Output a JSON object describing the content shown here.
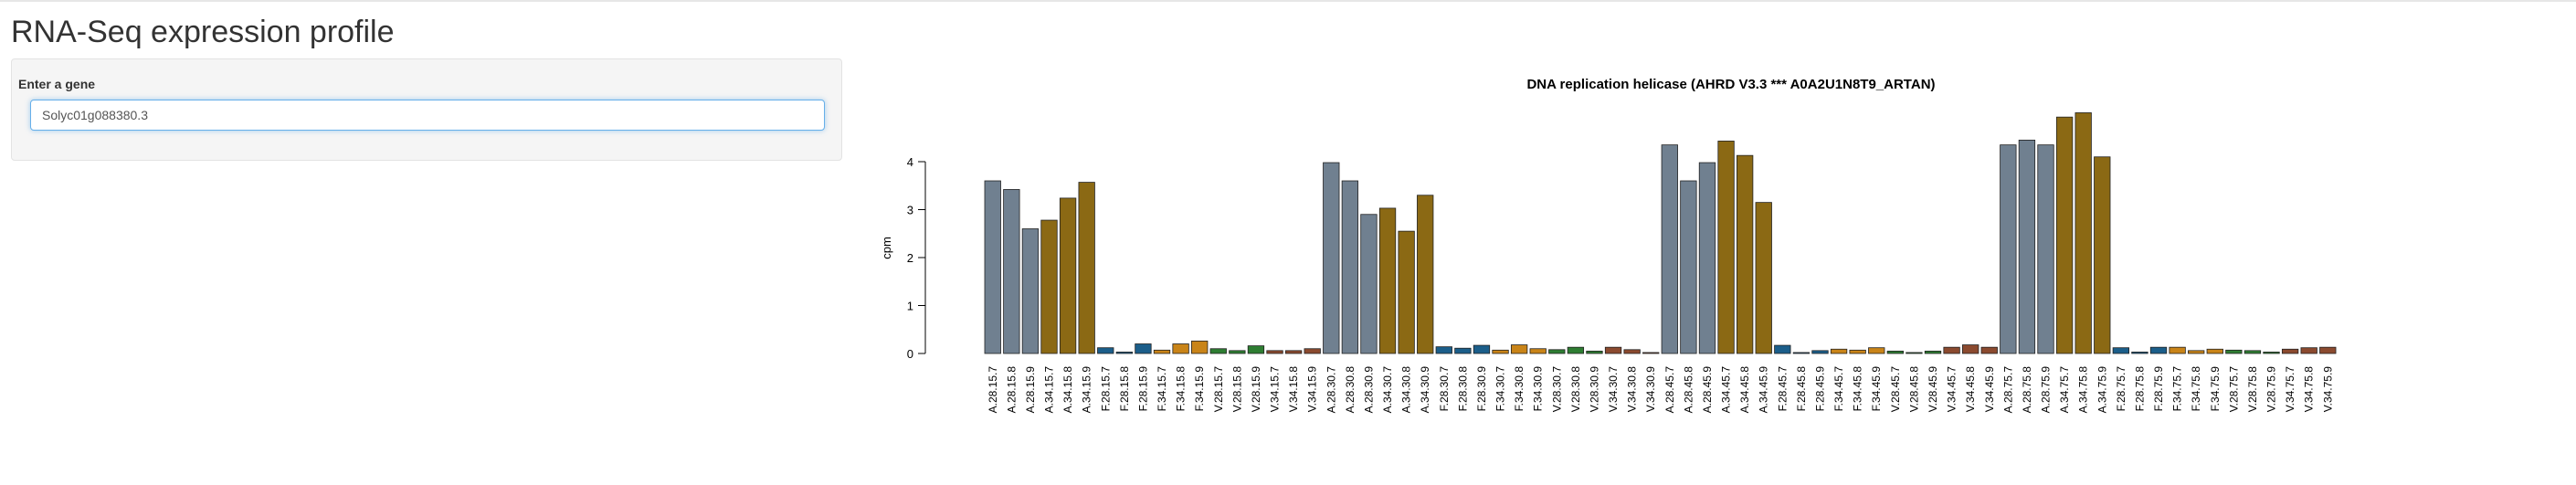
{
  "page": {
    "title": "RNA-Seq expression profile"
  },
  "sidebar": {
    "input_label": "Enter a gene",
    "gene_value": "Solyc01g088380.3"
  },
  "colors": {
    "grey": "#708090",
    "gold": "#8b6914",
    "blue": "#1b5e8a",
    "orange": "#c98418",
    "green": "#2e7d32",
    "brown": "#8b4a2f",
    "bar_stroke": "#222222"
  },
  "chart_data": {
    "type": "bar",
    "title": "DNA replication helicase (AHRD V3.3 *** A0A2U1N8T9_ARTAN)",
    "xlabel": "",
    "ylabel": "cpm",
    "ylim": [
      0,
      4.6
    ],
    "yticks": [
      0,
      1,
      2,
      3,
      4
    ],
    "grid": false,
    "categories": [
      "A.28.15.7",
      "A.28.15.8",
      "A.28.15.9",
      "A.34.15.7",
      "A.34.15.8",
      "A.34.15.9",
      "F.28.15.7",
      "F.28.15.8",
      "F.28.15.9",
      "F.34.15.7",
      "F.34.15.8",
      "F.34.15.9",
      "V.28.15.7",
      "V.28.15.8",
      "V.28.15.9",
      "V.34.15.7",
      "V.34.15.8",
      "V.34.15.9",
      "A.28.30.7",
      "A.28.30.8",
      "A.28.30.9",
      "A.34.30.7",
      "A.34.30.8",
      "A.34.30.9",
      "F.28.30.7",
      "F.28.30.8",
      "F.28.30.9",
      "F.34.30.7",
      "F.34.30.8",
      "F.34.30.9",
      "V.28.30.7",
      "V.28.30.8",
      "V.28.30.9",
      "V.34.30.7",
      "V.34.30.8",
      "V.34.30.9",
      "A.28.45.7",
      "A.28.45.8",
      "A.28.45.9",
      "A.34.45.7",
      "A.34.45.8",
      "A.34.45.9",
      "F.28.45.7",
      "F.28.45.8",
      "F.28.45.9",
      "F.34.45.7",
      "F.34.45.8",
      "F.34.45.9",
      "V.28.45.7",
      "V.28.45.8",
      "V.28.45.9",
      "V.34.45.7",
      "V.34.45.8",
      "V.34.45.9",
      "A.28.75.7",
      "A.28.75.8",
      "A.28.75.9",
      "A.34.75.7",
      "A.34.75.8",
      "A.34.75.9",
      "F.28.75.7",
      "F.28.75.8",
      "F.28.75.9",
      "F.34.75.7",
      "F.34.75.8",
      "F.34.75.9",
      "V.28.75.7",
      "V.28.75.8",
      "V.28.75.9",
      "V.34.75.7",
      "V.34.75.8",
      "V.34.75.9"
    ],
    "values": [
      3.6,
      3.42,
      2.6,
      2.78,
      3.24,
      3.57,
      0.12,
      0.03,
      0.2,
      0.07,
      0.2,
      0.26,
      0.1,
      0.06,
      0.16,
      0.06,
      0.06,
      0.1,
      3.98,
      3.6,
      2.9,
      3.03,
      2.55,
      3.3,
      0.14,
      0.11,
      0.17,
      0.07,
      0.18,
      0.1,
      0.08,
      0.13,
      0.05,
      0.13,
      0.08,
      0.02,
      4.35,
      3.6,
      3.98,
      4.43,
      4.13,
      3.15,
      0.17,
      0.02,
      0.06,
      0.09,
      0.07,
      0.12,
      0.05,
      0.02,
      0.05,
      0.13,
      0.18,
      0.13,
      4.35,
      4.45,
      4.35,
      4.93,
      5.02,
      4.1,
      0.12,
      0.03,
      0.13,
      0.13,
      0.06,
      0.09,
      0.07,
      0.06,
      0.03,
      0.09,
      0.12,
      0.13
    ],
    "bar_colors": [
      "#708090",
      "#708090",
      "#708090",
      "#8b6914",
      "#8b6914",
      "#8b6914",
      "#1b5e8a",
      "#1b5e8a",
      "#1b5e8a",
      "#c98418",
      "#c98418",
      "#c98418",
      "#2e7d32",
      "#2e7d32",
      "#2e7d32",
      "#8b4a2f",
      "#8b4a2f",
      "#8b4a2f",
      "#708090",
      "#708090",
      "#708090",
      "#8b6914",
      "#8b6914",
      "#8b6914",
      "#1b5e8a",
      "#1b5e8a",
      "#1b5e8a",
      "#c98418",
      "#c98418",
      "#c98418",
      "#2e7d32",
      "#2e7d32",
      "#2e7d32",
      "#8b4a2f",
      "#8b4a2f",
      "#8b4a2f",
      "#708090",
      "#708090",
      "#708090",
      "#8b6914",
      "#8b6914",
      "#8b6914",
      "#1b5e8a",
      "#1b5e8a",
      "#1b5e8a",
      "#c98418",
      "#c98418",
      "#c98418",
      "#2e7d32",
      "#2e7d32",
      "#2e7d32",
      "#8b4a2f",
      "#8b4a2f",
      "#8b4a2f",
      "#708090",
      "#708090",
      "#708090",
      "#8b6914",
      "#8b6914",
      "#8b6914",
      "#1b5e8a",
      "#1b5e8a",
      "#1b5e8a",
      "#c98418",
      "#c98418",
      "#c98418",
      "#2e7d32",
      "#2e7d32",
      "#2e7d32",
      "#8b4a2f",
      "#8b4a2f",
      "#8b4a2f"
    ]
  }
}
